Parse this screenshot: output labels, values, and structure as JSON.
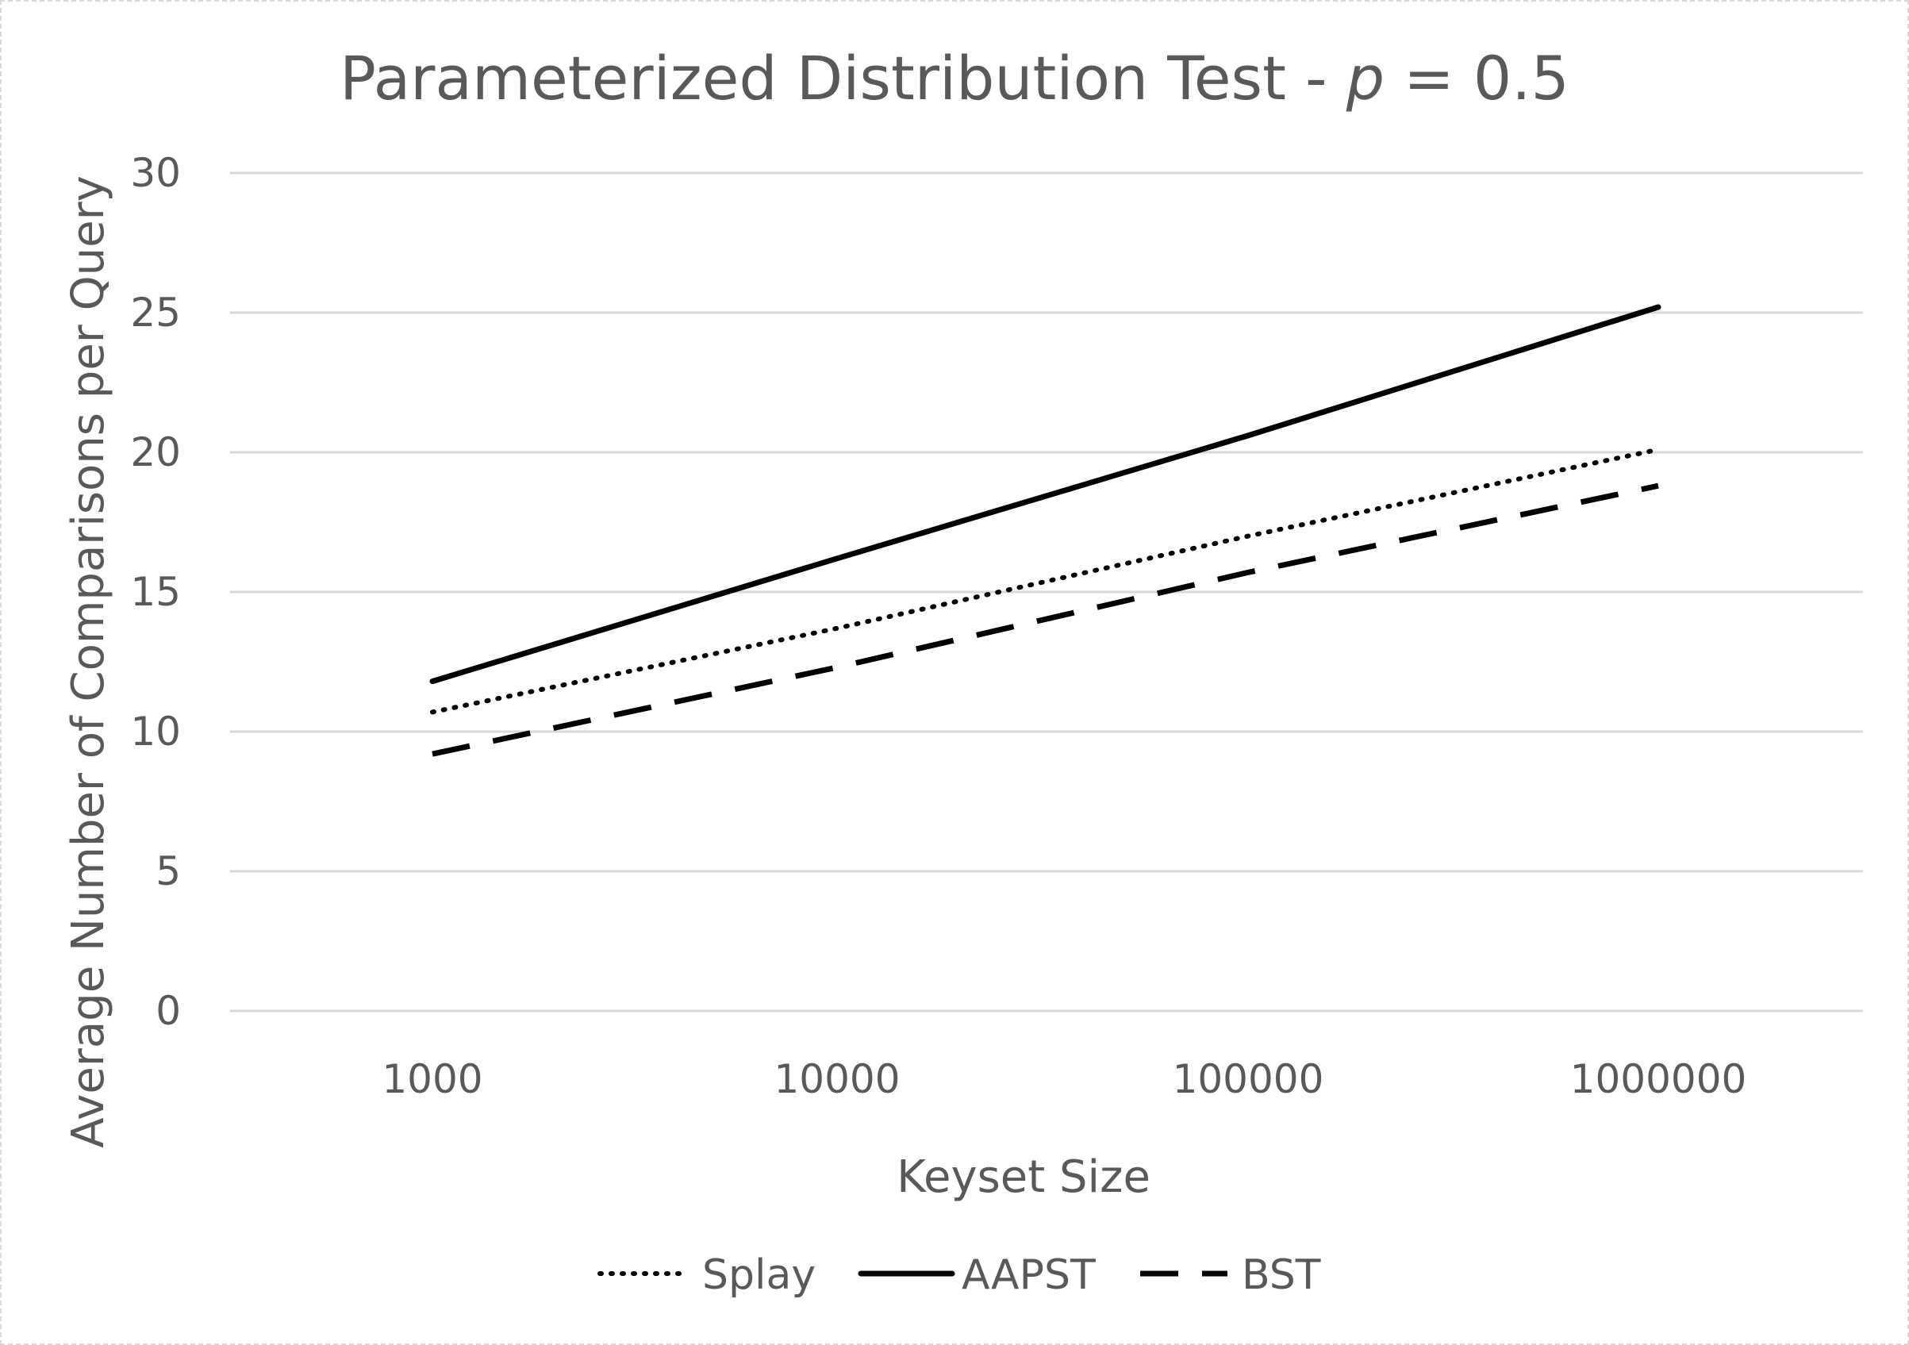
{
  "chart_data": {
    "type": "line",
    "title": "Parameterized Distribution Test - ",
    "title_var": "p",
    "title_rest": " = 0.5",
    "xlabel": "Keyset Size",
    "ylabel": "Average Number of Comparisons per Query",
    "categories": [
      "1000",
      "10000",
      "100000",
      "1000000"
    ],
    "x_scale": "categorical",
    "ylim": [
      0,
      30
    ],
    "yticks": [
      0,
      5,
      10,
      15,
      20,
      25,
      30
    ],
    "grid": true,
    "legend_position": "bottom",
    "series": [
      {
        "name": "Splay",
        "style": "dotted",
        "color": "#000000",
        "values": [
          10.7,
          13.7,
          17.0,
          20.1
        ]
      },
      {
        "name": "AAPST",
        "style": "solid",
        "color": "#000000",
        "values": [
          11.8,
          16.2,
          20.6,
          25.2
        ]
      },
      {
        "name": "BST",
        "style": "dashed",
        "color": "#000000",
        "values": [
          9.2,
          12.3,
          15.7,
          18.8
        ]
      }
    ]
  }
}
